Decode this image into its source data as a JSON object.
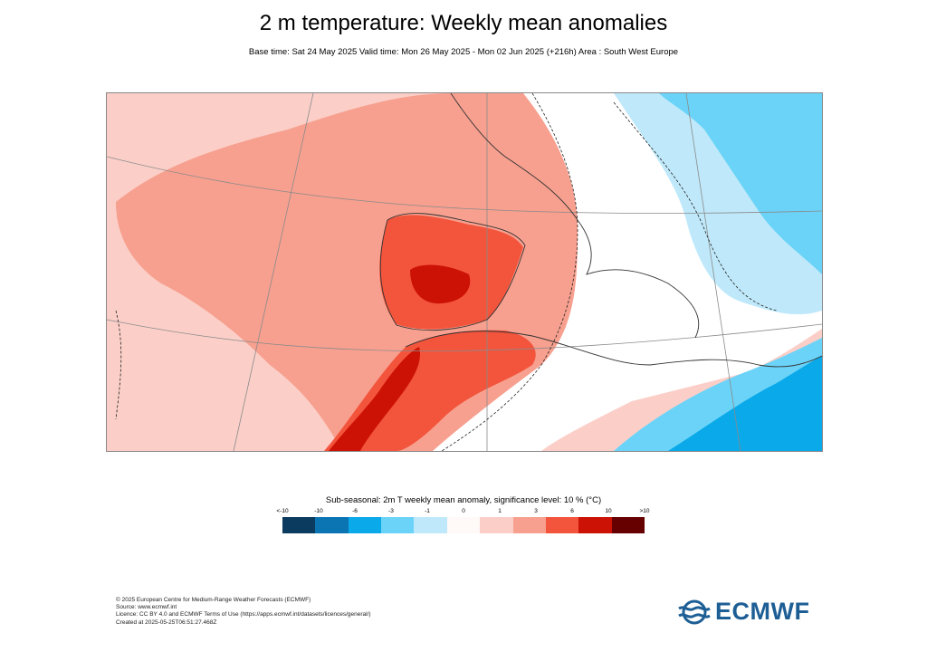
{
  "header": {
    "title": "2 m temperature: Weekly mean anomalies",
    "subtitle": "Base time: Sat 24 May 2025 Valid time: Mon 26 May 2025 - Mon 02 Jun 2025 (+216h) Area : South West Europe"
  },
  "legend": {
    "title": "Sub-seasonal: 2m T weekly mean anomaly, significance level: 10 % (°C)",
    "ticks": [
      "<-10",
      "-10",
      "-6",
      "-3",
      "-1",
      "0",
      "1",
      "3",
      "6",
      "10",
      ">10"
    ],
    "colors": [
      "#0b3b5e",
      "#0b75b4",
      "#0aa9e9",
      "#6bd3f8",
      "#bfe9fa",
      "#fff9f7",
      "#fbcfc8",
      "#f7a08f",
      "#f3543c",
      "#cc1205",
      "#660000"
    ]
  },
  "map": {
    "background_color": "#fbcfc8",
    "anomaly_colors": {
      "warm_light": "#fbcfc8",
      "warm": "#f7a08f",
      "warmer": "#f3543c",
      "hot": "#cc1205",
      "neutral": "#ffffff",
      "cool_light": "#bfe9fa",
      "cool": "#6bd3f8",
      "cooler": "#0aa9e9"
    }
  },
  "footer": {
    "lines": [
      "© 2025 European Centre for Medium-Range Weather Forecasts (ECMWF)",
      "Source: www.ecmwf.int",
      "Licence: CC BY 4.0 and ECMWF Terms of Use (https://apps.ecmwf.int/datasets/licences/general/)",
      "Created at 2025-05-25T06:51:27.468Z"
    ]
  },
  "logo": {
    "text": "ECMWF",
    "color": "#1d5e95",
    "icon": "ecmwf-logo-icon"
  }
}
